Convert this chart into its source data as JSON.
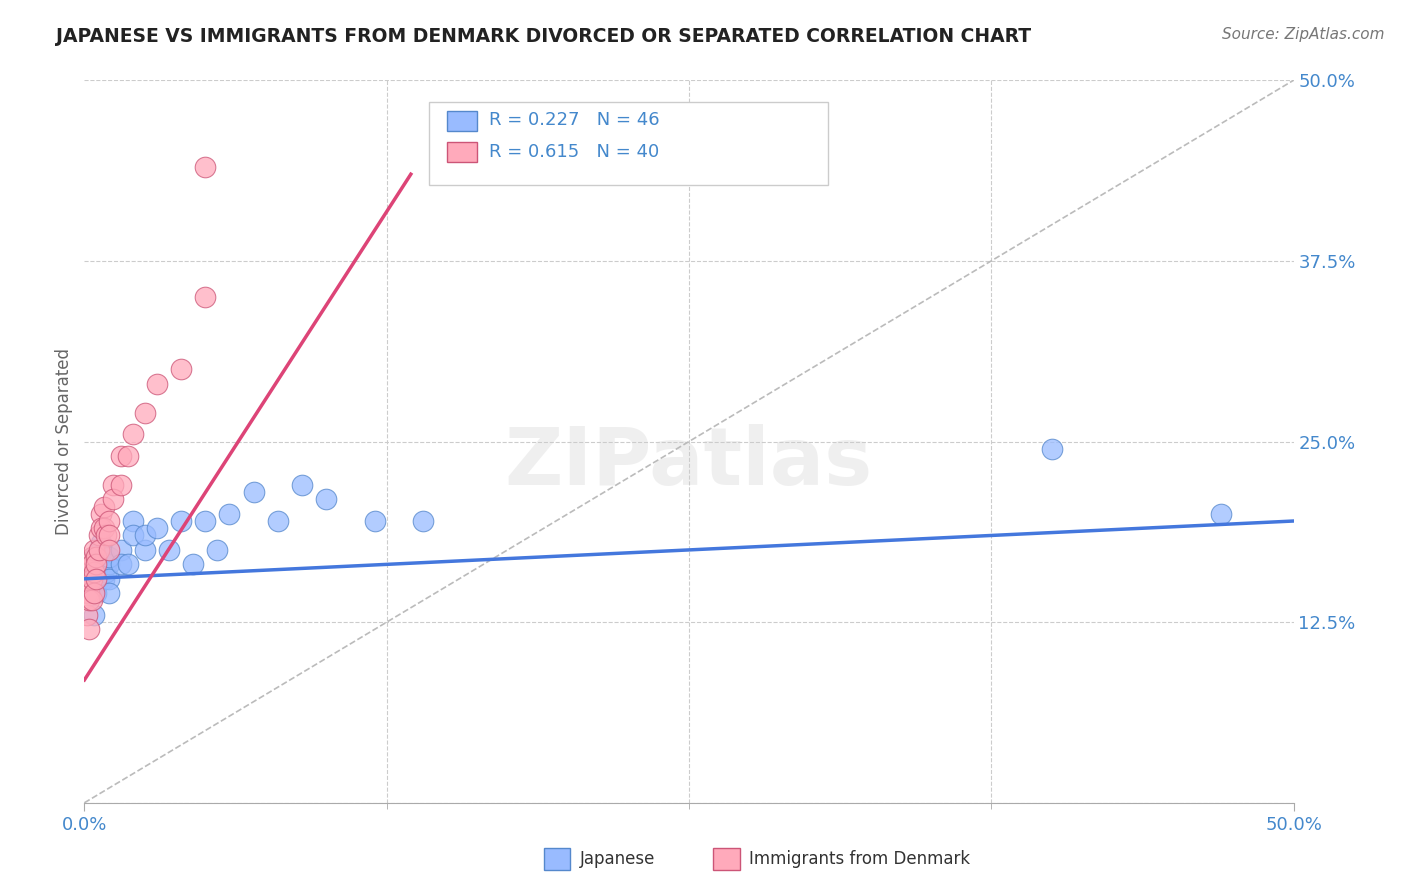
{
  "title": "JAPANESE VS IMMIGRANTS FROM DENMARK DIVORCED OR SEPARATED CORRELATION CHART",
  "source": "Source: ZipAtlas.com",
  "ylabel": "Divorced or Separated",
  "watermark": "ZIPatlas",
  "xlim": [
    0.0,
    0.5
  ],
  "ylim": [
    0.0,
    0.5
  ],
  "xticks": [
    0.0,
    0.5
  ],
  "xticklabels": [
    "0.0%",
    "50.0%"
  ],
  "yticks": [
    0.0,
    0.125,
    0.25,
    0.375,
    0.5
  ],
  "yticklabels": [
    "",
    "12.5%",
    "25.0%",
    "37.5%",
    "50.0%"
  ],
  "grid_yticks": [
    0.125,
    0.25,
    0.375,
    0.5
  ],
  "grid_color": "#cccccc",
  "background_color": "#ffffff",
  "blue_color": "#99bbff",
  "pink_color": "#ffaabb",
  "blue_line_color": "#4477dd",
  "pink_line_color": "#dd4477",
  "ref_line_color": "#bbbbbb",
  "title_color": "#222222",
  "axis_label_color": "#666666",
  "tick_label_color": "#4488cc",
  "r_color": "#4488cc",
  "japanese_x": [
    0.002,
    0.003,
    0.003,
    0.004,
    0.004,
    0.004,
    0.005,
    0.005,
    0.005,
    0.005,
    0.005,
    0.006,
    0.006,
    0.006,
    0.007,
    0.007,
    0.008,
    0.008,
    0.009,
    0.009,
    0.01,
    0.01,
    0.01,
    0.01,
    0.015,
    0.015,
    0.018,
    0.02,
    0.02,
    0.025,
    0.025,
    0.03,
    0.035,
    0.04,
    0.045,
    0.05,
    0.055,
    0.06,
    0.07,
    0.08,
    0.09,
    0.1,
    0.12,
    0.14,
    0.4,
    0.47
  ],
  "japanese_y": [
    0.16,
    0.155,
    0.165,
    0.17,
    0.145,
    0.13,
    0.155,
    0.15,
    0.16,
    0.17,
    0.145,
    0.16,
    0.165,
    0.155,
    0.18,
    0.175,
    0.155,
    0.17,
    0.165,
    0.16,
    0.165,
    0.155,
    0.17,
    0.145,
    0.175,
    0.165,
    0.165,
    0.195,
    0.185,
    0.175,
    0.185,
    0.19,
    0.175,
    0.195,
    0.165,
    0.195,
    0.175,
    0.2,
    0.215,
    0.195,
    0.22,
    0.21,
    0.195,
    0.195,
    0.245,
    0.2
  ],
  "denmark_x": [
    0.001,
    0.001,
    0.001,
    0.001,
    0.002,
    0.002,
    0.002,
    0.002,
    0.002,
    0.003,
    0.003,
    0.003,
    0.003,
    0.004,
    0.004,
    0.004,
    0.005,
    0.005,
    0.005,
    0.006,
    0.006,
    0.007,
    0.007,
    0.008,
    0.008,
    0.009,
    0.01,
    0.01,
    0.01,
    0.012,
    0.012,
    0.015,
    0.015,
    0.018,
    0.02,
    0.025,
    0.03,
    0.04,
    0.05,
    0.05
  ],
  "denmark_y": [
    0.155,
    0.165,
    0.145,
    0.13,
    0.16,
    0.155,
    0.145,
    0.14,
    0.12,
    0.17,
    0.165,
    0.155,
    0.14,
    0.175,
    0.16,
    0.145,
    0.17,
    0.165,
    0.155,
    0.185,
    0.175,
    0.2,
    0.19,
    0.205,
    0.19,
    0.185,
    0.195,
    0.185,
    0.175,
    0.22,
    0.21,
    0.24,
    0.22,
    0.24,
    0.255,
    0.27,
    0.29,
    0.3,
    0.35,
    0.44
  ],
  "blue_line_x": [
    0.0,
    0.5
  ],
  "blue_line_y": [
    0.155,
    0.195
  ],
  "pink_line_x": [
    0.0,
    0.135
  ],
  "pink_line_y": [
    0.085,
    0.435
  ],
  "ref_line_x": [
    0.0,
    0.5
  ],
  "ref_line_y": [
    0.0,
    0.5
  ]
}
